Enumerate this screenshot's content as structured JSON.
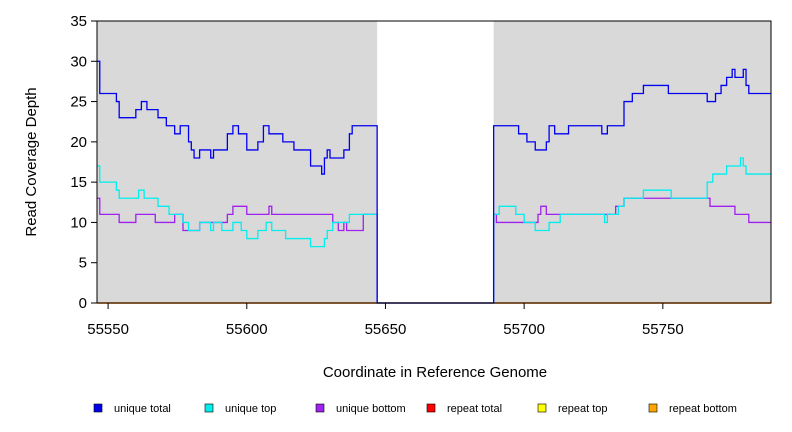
{
  "chart_data": {
    "type": "line",
    "title": "",
    "xlabel": "Coordinate in Reference Genome",
    "ylabel": "Read Coverage Depth",
    "xlim": [
      55546,
      55789
    ],
    "ylim": [
      0,
      35
    ],
    "xticks": [
      55550,
      55600,
      55650,
      55700,
      55750
    ],
    "yticks": [
      0,
      5,
      10,
      15,
      20,
      25,
      30,
      35
    ],
    "background_regions": [
      {
        "x": [
          55546,
          55647
        ],
        "color": "#d9d9d9"
      },
      {
        "x": [
          55689,
          55789
        ],
        "color": "#d9d9d9"
      }
    ],
    "legend_position": "bottom",
    "series": [
      {
        "name": "unique total",
        "color": "#0000ee",
        "step": true,
        "points": [
          [
            55546,
            30
          ],
          [
            55547,
            26
          ],
          [
            55553,
            25
          ],
          [
            55554,
            23
          ],
          [
            55560,
            24
          ],
          [
            55562,
            25
          ],
          [
            55564,
            24
          ],
          [
            55568,
            23
          ],
          [
            55571,
            22
          ],
          [
            55574,
            21
          ],
          [
            55576,
            22
          ],
          [
            55579,
            20
          ],
          [
            55580,
            19
          ],
          [
            55581,
            18
          ],
          [
            55583,
            19
          ],
          [
            55587,
            18
          ],
          [
            55588,
            19
          ],
          [
            55593,
            21
          ],
          [
            55595,
            22
          ],
          [
            55597,
            21
          ],
          [
            55600,
            19
          ],
          [
            55604,
            20
          ],
          [
            55606,
            22
          ],
          [
            55608,
            21
          ],
          [
            55613,
            20
          ],
          [
            55617,
            19
          ],
          [
            55623,
            17
          ],
          [
            55627,
            16
          ],
          [
            55628,
            18
          ],
          [
            55629,
            19
          ],
          [
            55630,
            18
          ],
          [
            55635,
            19
          ],
          [
            55637,
            21
          ],
          [
            55638,
            22
          ],
          [
            55643,
            22
          ],
          [
            55647,
            0
          ],
          [
            55689,
            22
          ],
          [
            55698,
            21
          ],
          [
            55701,
            20
          ],
          [
            55704,
            19
          ],
          [
            55708,
            20
          ],
          [
            55709,
            22
          ],
          [
            55711,
            21
          ],
          [
            55716,
            22
          ],
          [
            55728,
            21
          ],
          [
            55730,
            22
          ],
          [
            55736,
            25
          ],
          [
            55739,
            26
          ],
          [
            55743,
            27
          ],
          [
            55752,
            26
          ],
          [
            55766,
            25
          ],
          [
            55769,
            26
          ],
          [
            55771,
            27
          ],
          [
            55773,
            28
          ],
          [
            55775,
            29
          ],
          [
            55776,
            28
          ],
          [
            55779,
            29
          ],
          [
            55780,
            27
          ],
          [
            55781,
            26
          ],
          [
            55789,
            26
          ]
        ]
      },
      {
        "name": "unique top",
        "color": "#00eeee",
        "step": true,
        "points": [
          [
            55546,
            17
          ],
          [
            55547,
            15
          ],
          [
            55553,
            14
          ],
          [
            55554,
            13
          ],
          [
            55561,
            14
          ],
          [
            55563,
            13
          ],
          [
            55568,
            12
          ],
          [
            55572,
            11
          ],
          [
            55577,
            10
          ],
          [
            55579,
            9
          ],
          [
            55583,
            10
          ],
          [
            55587,
            9
          ],
          [
            55588,
            10
          ],
          [
            55591,
            9
          ],
          [
            55595,
            10
          ],
          [
            55598,
            9
          ],
          [
            55600,
            8
          ],
          [
            55604,
            9
          ],
          [
            55607,
            10
          ],
          [
            55609,
            9
          ],
          [
            55614,
            8
          ],
          [
            55623,
            7
          ],
          [
            55628,
            8
          ],
          [
            55629,
            9
          ],
          [
            55631,
            10
          ],
          [
            55637,
            11
          ],
          [
            55641,
            11
          ],
          [
            55647,
            0
          ],
          [
            55689,
            11
          ],
          [
            55691,
            12
          ],
          [
            55697,
            11
          ],
          [
            55700,
            10
          ],
          [
            55704,
            9
          ],
          [
            55709,
            10
          ],
          [
            55713,
            11
          ],
          [
            55729,
            10
          ],
          [
            55730,
            11
          ],
          [
            55734,
            12
          ],
          [
            55736,
            13
          ],
          [
            55743,
            14
          ],
          [
            55753,
            13
          ],
          [
            55766,
            15
          ],
          [
            55768,
            16
          ],
          [
            55773,
            17
          ],
          [
            55778,
            18
          ],
          [
            55779,
            17
          ],
          [
            55780,
            16
          ],
          [
            55789,
            16
          ]
        ]
      },
      {
        "name": "unique bottom",
        "color": "#a020f0",
        "step": true,
        "points": [
          [
            55546,
            13
          ],
          [
            55547,
            11
          ],
          [
            55554,
            10
          ],
          [
            55560,
            11
          ],
          [
            55567,
            10
          ],
          [
            55574,
            11
          ],
          [
            55577,
            9
          ],
          [
            55583,
            10
          ],
          [
            55593,
            11
          ],
          [
            55595,
            12
          ],
          [
            55600,
            11
          ],
          [
            55608,
            12
          ],
          [
            55609,
            11
          ],
          [
            55631,
            10
          ],
          [
            55633,
            9
          ],
          [
            55635,
            10
          ],
          [
            55636,
            9
          ],
          [
            55642,
            11
          ],
          [
            55647,
            0
          ],
          [
            55689,
            11
          ],
          [
            55690,
            10
          ],
          [
            55705,
            11
          ],
          [
            55706,
            12
          ],
          [
            55708,
            11
          ],
          [
            55733,
            12
          ],
          [
            55736,
            13
          ],
          [
            55767,
            12
          ],
          [
            55776,
            11
          ],
          [
            55781,
            10
          ],
          [
            55789,
            10
          ]
        ]
      },
      {
        "name": "repeat total",
        "color": "#ff0000",
        "step": true,
        "points": [
          [
            55546,
            0
          ],
          [
            55789,
            0
          ]
        ]
      },
      {
        "name": "repeat top",
        "color": "#ffff00",
        "step": true,
        "points": [
          [
            55546,
            0
          ],
          [
            55789,
            0
          ]
        ]
      },
      {
        "name": "repeat bottom",
        "color": "#ffa500",
        "step": true,
        "points": [
          [
            55546,
            0
          ],
          [
            55789,
            0
          ]
        ]
      }
    ]
  }
}
